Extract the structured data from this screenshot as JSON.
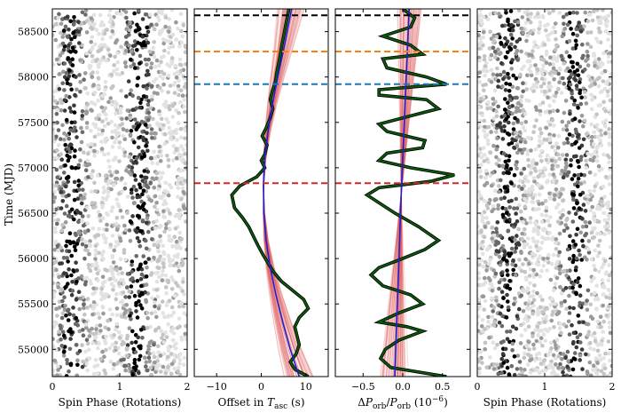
{
  "chart_data": [
    {
      "type": "scatter",
      "panel": "spin-phase-left",
      "xlabel": "Spin Phase (Rotations)",
      "ylabel": "Time (MJD)",
      "xlim": [
        0,
        2
      ],
      "ylim": [
        54700,
        58750
      ],
      "xticks": [
        0,
        1,
        2
      ],
      "yticks": [
        55000,
        55500,
        56000,
        56500,
        57000,
        57500,
        58000,
        58500
      ],
      "pulse_centers": [
        0.28,
        1.28
      ],
      "point_count": 2000,
      "point_colors": [
        "#000000",
        "#3a3a3a",
        "#6a6a6a",
        "#9a9a9a",
        "#c4c4c4",
        "#e2e2e2"
      ]
    },
    {
      "type": "line",
      "panel": "offset-tasc",
      "xlabel": "Offset in T_asc (s)",
      "xlim": [
        -15,
        15
      ],
      "ylim": [
        54700,
        58750
      ],
      "xticks": [
        -10,
        0,
        10
      ],
      "series": [
        {
          "role": "fit-curve",
          "color": "#0b5a0b",
          "points": [
            [
              10.5,
              54700
            ],
            [
              7.5,
              54780
            ],
            [
              6.5,
              54860
            ],
            [
              7.8,
              54950
            ],
            [
              8.5,
              55050
            ],
            [
              8.0,
              55150
            ],
            [
              7.5,
              55250
            ],
            [
              8.5,
              55350
            ],
            [
              10.5,
              55450
            ],
            [
              9.5,
              55550
            ],
            [
              7.0,
              55650
            ],
            [
              4.5,
              55750
            ],
            [
              2.8,
              55850
            ],
            [
              1.5,
              55950
            ],
            [
              0.3,
              56050
            ],
            [
              -0.8,
              56150
            ],
            [
              -1.8,
              56250
            ],
            [
              -2.8,
              56350
            ],
            [
              -4.2,
              56450
            ],
            [
              -6.0,
              56560
            ],
            [
              -6.6,
              56700
            ],
            [
              -4.8,
              56800
            ],
            [
              -1.0,
              56900
            ],
            [
              0.8,
              57000
            ],
            [
              0.0,
              57080
            ],
            [
              0.8,
              57150
            ],
            [
              1.3,
              57250
            ],
            [
              0.2,
              57350
            ],
            [
              1.2,
              57450
            ],
            [
              2.0,
              57550
            ],
            [
              2.6,
              57650
            ],
            [
              2.0,
              57750
            ],
            [
              2.5,
              57850
            ],
            [
              3.2,
              57950
            ],
            [
              3.5,
              58050
            ],
            [
              3.9,
              58150
            ],
            [
              4.3,
              58250
            ],
            [
              4.6,
              58350
            ],
            [
              5.0,
              58450
            ],
            [
              5.4,
              58550
            ],
            [
              5.8,
              58650
            ],
            [
              6.2,
              58750
            ]
          ]
        },
        {
          "role": "trend",
          "color": "#1f1fd4",
          "points": [
            [
              8.5,
              54700
            ],
            [
              6.5,
              55000
            ],
            [
              4.8,
              55300
            ],
            [
              3.3,
              55600
            ],
            [
              2.0,
              55900
            ],
            [
              1.1,
              56200
            ],
            [
              0.6,
              56500
            ],
            [
              0.5,
              56800
            ],
            [
              0.8,
              57100
            ],
            [
              1.5,
              57400
            ],
            [
              2.5,
              57700
            ],
            [
              3.7,
              58000
            ],
            [
              5.0,
              58300
            ],
            [
              6.8,
              58750
            ]
          ]
        }
      ],
      "samples": {
        "count": 60,
        "color": "#e05555"
      }
    },
    {
      "type": "line",
      "panel": "delta-porb",
      "xlabel": "ΔP_orb/P_orb (10⁻⁶)",
      "xlim": [
        -0.85,
        0.85
      ],
      "ylim": [
        54700,
        58750
      ],
      "xticks": [
        -0.5,
        0.0,
        0.5
      ],
      "series": [
        {
          "role": "fit-curve",
          "color": "#0b5a0b",
          "points": [
            [
              0.55,
              54700
            ],
            [
              -0.15,
              54800
            ],
            [
              -0.28,
              54900
            ],
            [
              -0.22,
              55000
            ],
            [
              -0.05,
              55100
            ],
            [
              0.25,
              55200
            ],
            [
              0.05,
              55250
            ],
            [
              -0.3,
              55300
            ],
            [
              -0.05,
              55400
            ],
            [
              0.25,
              55500
            ],
            [
              0.1,
              55600
            ],
            [
              -0.25,
              55700
            ],
            [
              -0.4,
              55820
            ],
            [
              -0.3,
              55900
            ],
            [
              0.0,
              56000
            ],
            [
              0.28,
              56100
            ],
            [
              0.45,
              56200
            ],
            [
              0.2,
              56350
            ],
            [
              -0.1,
              56500
            ],
            [
              -0.45,
              56700
            ],
            [
              -0.3,
              56780
            ],
            [
              0.35,
              56850
            ],
            [
              0.65,
              56920
            ],
            [
              0.1,
              57000
            ],
            [
              -0.3,
              57080
            ],
            [
              -0.2,
              57160
            ],
            [
              0.25,
              57220
            ],
            [
              0.28,
              57300
            ],
            [
              -0.2,
              57400
            ],
            [
              -0.3,
              57480
            ],
            [
              0.0,
              57550
            ],
            [
              0.45,
              57650
            ],
            [
              0.3,
              57750
            ],
            [
              -0.3,
              57800
            ],
            [
              -0.3,
              57860
            ],
            [
              0.55,
              57920
            ],
            [
              0.3,
              58000
            ],
            [
              -0.2,
              58100
            ],
            [
              -0.25,
              58200
            ],
            [
              0.25,
              58250
            ],
            [
              0.1,
              58350
            ],
            [
              -0.25,
              58450
            ],
            [
              0.1,
              58550
            ],
            [
              0.15,
              58650
            ],
            [
              0.0,
              58750
            ]
          ]
        },
        {
          "role": "trend",
          "color": "#1f1fd4",
          "points": [
            [
              -0.1,
              54700
            ],
            [
              -0.02,
              56700
            ],
            [
              0.08,
              58750
            ]
          ]
        }
      ],
      "samples": {
        "count": 60,
        "color": "#e05555"
      }
    },
    {
      "type": "scatter",
      "panel": "spin-phase-right",
      "xlabel": "Spin Phase (Rotations)",
      "xlim": [
        0,
        2
      ],
      "ylim": [
        54700,
        58750
      ],
      "xticks": [
        0,
        1,
        2
      ],
      "pulse_centers": [
        0.45,
        1.45
      ],
      "point_count": 2000,
      "point_colors": [
        "#000000",
        "#3a3a3a",
        "#6a6a6a",
        "#9a9a9a",
        "#c4c4c4",
        "#e2e2e2"
      ]
    }
  ],
  "event_lines": [
    {
      "mjd": 58680,
      "color": "#000000"
    },
    {
      "mjd": 58280,
      "color": "#ff7f0e"
    },
    {
      "mjd": 57920,
      "color": "#1f77b4"
    },
    {
      "mjd": 56830,
      "color": "#d62728"
    }
  ]
}
